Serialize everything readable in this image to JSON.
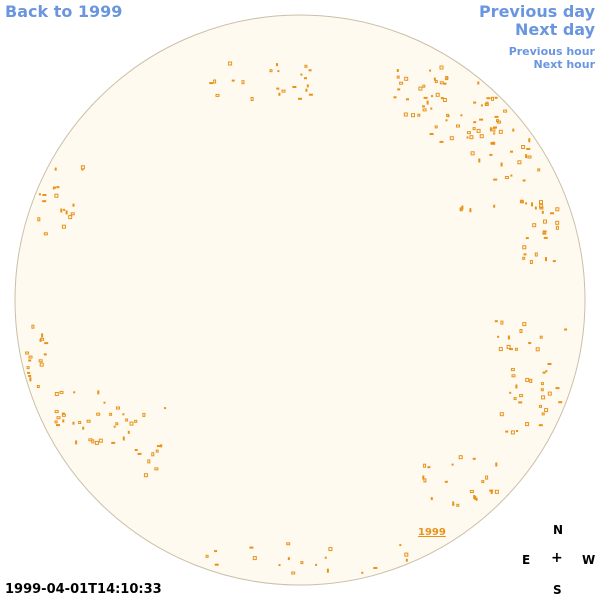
{
  "nav": {
    "back": "Back to 1999",
    "previous_day": "Previous day",
    "next_day": "Next day",
    "previous_hour": "Previous hour",
    "next_hour": "Next hour"
  },
  "timestamp": "1999-04-01T14:10:33",
  "compass": {
    "north": "N",
    "south": "S",
    "east": "E",
    "west": "W",
    "center": "+"
  },
  "year_label": "1999",
  "colors": {
    "disk_fill": "#fefaf0",
    "disk_border": "#cbbfa7",
    "contour": "#e8921a",
    "link": "#6a96e0"
  }
}
